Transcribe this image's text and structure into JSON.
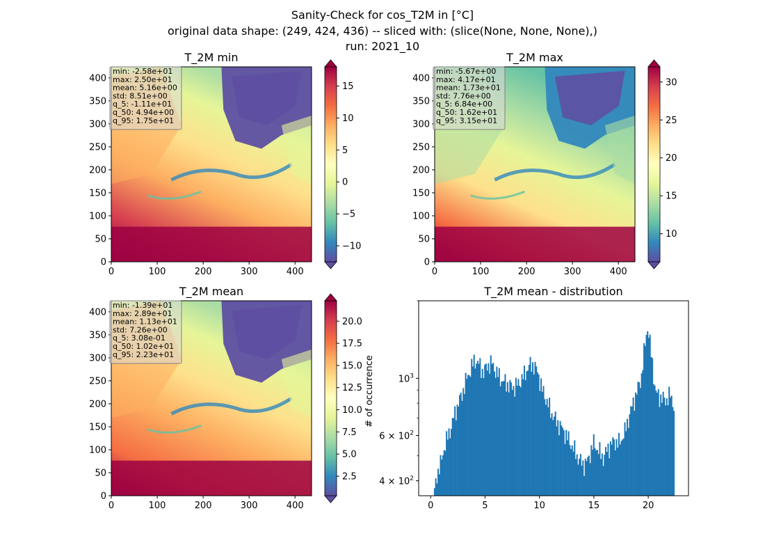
{
  "figure": {
    "suptitle_lines": [
      "Sanity-Check for cos_T2M in [°C]",
      "original data shape: (249, 424, 436) -- sliced with: (slice(None, None, None),)",
      "run: 2021_10"
    ]
  },
  "panels": [
    {
      "id": "min",
      "title": "T_2M min",
      "x_ticks": [
        0,
        100,
        200,
        300,
        400
      ],
      "y_ticks": [
        0,
        50,
        100,
        150,
        200,
        250,
        300,
        350,
        400
      ],
      "xlim": [
        0,
        436
      ],
      "ylim": [
        0,
        424
      ],
      "colorbar": {
        "cmap": "Spectral_r",
        "min": -12.5,
        "max": 18,
        "ticks": [
          "−10",
          "−5",
          "0",
          "5",
          "10",
          "15"
        ],
        "tick_values": [
          -10,
          -5,
          0,
          5,
          10,
          15
        ],
        "extend": "both"
      },
      "stats": [
        "min: -2.58e+01",
        "max: 2.50e+01",
        "mean: 5.16e+00",
        "std: 8.51e+00",
        "q_5: -1.11e+01",
        "q_50: 4.94e+00",
        "q_95: 1.75e+01"
      ]
    },
    {
      "id": "max",
      "title": "T_2M max",
      "x_ticks": [
        0,
        100,
        200,
        300,
        400
      ],
      "y_ticks": [
        0,
        50,
        100,
        150,
        200,
        250,
        300,
        350,
        400
      ],
      "xlim": [
        0,
        436
      ],
      "ylim": [
        0,
        424
      ],
      "colorbar": {
        "cmap": "Spectral_r",
        "min": 6.3,
        "max": 32,
        "ticks": [
          "10",
          "15",
          "20",
          "25",
          "30"
        ],
        "tick_values": [
          10,
          15,
          20,
          25,
          30
        ],
        "extend": "both"
      },
      "stats": [
        "min: -5.67e+00",
        "max: 4.17e+01",
        "mean: 1.73e+01",
        "std: 7.76e+00",
        "q_5: 6.84e+00",
        "q_50: 1.62e+01",
        "q_95: 3.15e+01"
      ]
    },
    {
      "id": "mean",
      "title": "T_2M mean",
      "x_ticks": [
        0,
        100,
        200,
        300,
        400
      ],
      "y_ticks": [
        0,
        50,
        100,
        150,
        200,
        250,
        300,
        350,
        400
      ],
      "xlim": [
        0,
        436
      ],
      "ylim": [
        0,
        424
      ],
      "colorbar": {
        "cmap": "Spectral_r",
        "min": 0.3,
        "max": 22.3,
        "ticks": [
          "2.5",
          "5.0",
          "7.5",
          "10.0",
          "12.5",
          "15.0",
          "17.5",
          "20.0"
        ],
        "tick_values": [
          2.5,
          5,
          7.5,
          10,
          12.5,
          15,
          17.5,
          20
        ],
        "extend": "both"
      },
      "stats": [
        "min: -1.39e+01",
        "max: 2.89e+01",
        "mean: 1.13e+01",
        "std: 7.26e+00",
        "q_5: 3.08e-01",
        "q_50: 1.02e+01",
        "q_95: 2.23e+01"
      ]
    }
  ],
  "chart_data": {
    "type": "bar",
    "title": "T_2M mean - distribution",
    "ylabel": "# of occurrence",
    "xlabel": "",
    "y_scale": "log",
    "xlim": [
      -1.1,
      23.7
    ],
    "ylim": [
      350,
      2000
    ],
    "x_ticks": [
      0,
      5,
      10,
      15,
      20
    ],
    "y_tick_labels": [
      {
        "value": 1000,
        "base": "10",
        "exp": "3",
        "mantissa": ""
      },
      {
        "value": 600,
        "base": "10",
        "exp": "2",
        "mantissa": "6 × "
      },
      {
        "value": 400,
        "base": "10",
        "exp": "2",
        "mantissa": "4 × "
      }
    ],
    "color": "#1f77b4",
    "bin_start": 0.3,
    "bin_width": 0.11,
    "anchors": [
      [
        0.3,
        360
      ],
      [
        0.5,
        420
      ],
      [
        0.9,
        470
      ],
      [
        1.2,
        540
      ],
      [
        1.8,
        640
      ],
      [
        2.3,
        760
      ],
      [
        2.8,
        860
      ],
      [
        3.2,
        980
      ],
      [
        3.6,
        1080
      ],
      [
        4.0,
        1180
      ],
      [
        4.4,
        1130
      ],
      [
        4.8,
        1050
      ],
      [
        5.2,
        1130
      ],
      [
        5.6,
        1140
      ],
      [
        6.0,
        1050
      ],
      [
        6.5,
        980
      ],
      [
        7.0,
        950
      ],
      [
        7.5,
        920
      ],
      [
        8.0,
        950
      ],
      [
        8.5,
        1020
      ],
      [
        9.0,
        1120
      ],
      [
        9.4,
        1130
      ],
      [
        9.8,
        1050
      ],
      [
        10.2,
        900
      ],
      [
        10.6,
        820
      ],
      [
        11.0,
        740
      ],
      [
        11.5,
        680
      ],
      [
        12.0,
        640
      ],
      [
        12.5,
        590
      ],
      [
        13.0,
        540
      ],
      [
        13.5,
        490
      ],
      [
        14.0,
        460
      ],
      [
        14.4,
        480
      ],
      [
        14.9,
        560
      ],
      [
        15.3,
        530
      ],
      [
        15.8,
        490
      ],
      [
        16.3,
        540
      ],
      [
        16.8,
        570
      ],
      [
        17.3,
        560
      ],
      [
        17.8,
        620
      ],
      [
        18.3,
        740
      ],
      [
        18.8,
        860
      ],
      [
        19.3,
        1000
      ],
      [
        19.6,
        1300
      ],
      [
        19.9,
        1600
      ],
      [
        20.2,
        1250
      ],
      [
        20.6,
        880
      ],
      [
        21.0,
        850
      ],
      [
        21.5,
        820
      ],
      [
        22.0,
        860
      ],
      [
        22.3,
        780
      ]
    ]
  }
}
